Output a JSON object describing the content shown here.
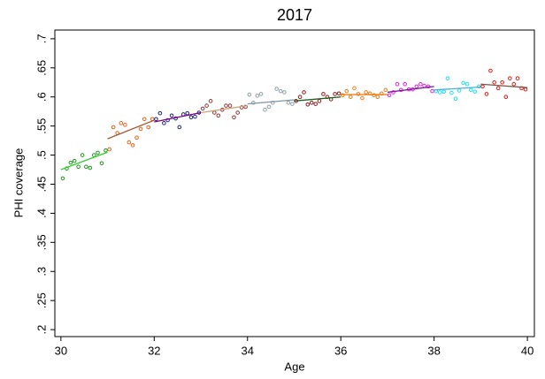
{
  "chart_data": {
    "type": "scatter",
    "title": "2017",
    "x_label": "Age",
    "y_label": "PHI coverage",
    "xlim": [
      29.87,
      40.15
    ],
    "ylim": [
      0.188,
      0.715
    ],
    "xticks": [
      30,
      32,
      34,
      36,
      38,
      40
    ],
    "yticks": [
      {
        "value": 0.2,
        "label": ".2"
      },
      {
        "value": 0.25,
        "label": ".25"
      },
      {
        "value": 0.3,
        "label": ".3"
      },
      {
        "value": 0.35,
        "label": ".35"
      },
      {
        "value": 0.4,
        "label": ".4"
      },
      {
        "value": 0.45,
        "label": ".45"
      },
      {
        "value": 0.5,
        "label": ".5"
      },
      {
        "value": 0.55,
        "label": ".55"
      },
      {
        "value": 0.6,
        "label": ".6"
      },
      {
        "value": 0.65,
        "label": ".65"
      },
      {
        "value": 0.7,
        "label": ".7"
      }
    ],
    "series": [
      {
        "color": "#1a9a1a",
        "x": [
          30.04,
          30.125,
          30.21,
          30.29,
          30.375,
          30.46,
          30.54,
          30.625,
          30.71,
          30.79,
          30.875,
          30.96
        ],
        "values": [
          0.46,
          0.477,
          0.487,
          0.49,
          0.48,
          0.5,
          0.48,
          0.478,
          0.5,
          0.504,
          0.486,
          0.508
        ],
        "fit": {
          "x": [
            30,
            31
          ],
          "values": [
            0.475,
            0.505
          ],
          "color": "#33cc33"
        }
      },
      {
        "color": "#e8601c",
        "x": [
          31.04,
          31.125,
          31.21,
          31.29,
          31.375,
          31.46,
          31.54,
          31.625,
          31.71,
          31.79,
          31.875,
          31.96
        ],
        "values": [
          0.51,
          0.548,
          0.538,
          0.555,
          0.552,
          0.522,
          0.517,
          0.53,
          0.545,
          0.562,
          0.548,
          0.562
        ],
        "fit": {
          "x": [
            31,
            32
          ],
          "values": [
            0.528,
            0.56
          ],
          "color": "#a0522d"
        }
      },
      {
        "color": "#1a237e",
        "x": [
          32.04,
          32.125,
          32.21,
          32.29,
          32.375,
          32.46,
          32.54,
          32.625,
          32.71,
          32.79,
          32.875,
          32.96
        ],
        "values": [
          0.562,
          0.572,
          0.555,
          0.56,
          0.568,
          0.563,
          0.548,
          0.57,
          0.572,
          0.565,
          0.566,
          0.573
        ],
        "fit": {
          "x": [
            32,
            33
          ],
          "values": [
            0.557,
            0.573
          ],
          "color": "#800080"
        }
      },
      {
        "color": "#8b3a3a",
        "x": [
          33.04,
          33.125,
          33.21,
          33.29,
          33.375,
          33.46,
          33.54,
          33.625,
          33.71,
          33.79,
          33.875,
          33.96
        ],
        "values": [
          0.58,
          0.585,
          0.593,
          0.573,
          0.568,
          0.578,
          0.585,
          0.585,
          0.565,
          0.573,
          0.582,
          0.583
        ],
        "fit": {
          "x": [
            33,
            34
          ],
          "values": [
            0.573,
            0.585
          ],
          "color": "#c8a67a"
        }
      },
      {
        "color": "#8e9ea0",
        "x": [
          34.04,
          34.125,
          34.21,
          34.29,
          34.375,
          34.46,
          34.54,
          34.625,
          34.71,
          34.79,
          34.875,
          34.96
        ],
        "values": [
          0.604,
          0.59,
          0.602,
          0.605,
          0.578,
          0.583,
          0.59,
          0.614,
          0.61,
          0.608,
          0.59,
          0.588
        ],
        "fit": {
          "x": [
            34,
            35
          ],
          "values": [
            0.588,
            0.595
          ],
          "color": "#7f93a8"
        }
      },
      {
        "color": "#8b1a1a",
        "x": [
          35.04,
          35.125,
          35.21,
          35.29,
          35.375,
          35.46,
          35.54,
          35.625,
          35.71,
          35.79,
          35.875,
          35.96
        ],
        "values": [
          0.593,
          0.6,
          0.608,
          0.587,
          0.59,
          0.588,
          0.593,
          0.605,
          0.6,
          0.596,
          0.605,
          0.606
        ],
        "fit": {
          "x": [
            35,
            36
          ],
          "values": [
            0.593,
            0.6
          ],
          "color": "#1a5e1a"
        }
      },
      {
        "color": "#e87d1a",
        "x": [
          36.04,
          36.125,
          36.21,
          36.29,
          36.375,
          36.46,
          36.54,
          36.625,
          36.71,
          36.79,
          36.875,
          36.96
        ],
        "values": [
          0.603,
          0.61,
          0.6,
          0.615,
          0.605,
          0.598,
          0.608,
          0.606,
          0.603,
          0.6,
          0.606,
          0.612
        ],
        "fit": {
          "x": [
            36,
            37
          ],
          "values": [
            0.604,
            0.604
          ],
          "color": "#e87d1a"
        }
      },
      {
        "color": "#e020e0",
        "x": [
          37.04,
          37.125,
          37.21,
          37.29,
          37.375,
          37.46,
          37.54,
          37.625,
          37.71,
          37.79,
          37.875,
          37.96
        ],
        "values": [
          0.603,
          0.608,
          0.622,
          0.612,
          0.622,
          0.613,
          0.613,
          0.618,
          0.622,
          0.619,
          0.618,
          0.61
        ],
        "fit": {
          "x": [
            37,
            38
          ],
          "values": [
            0.608,
            0.618
          ],
          "color": "#7a1a9a"
        }
      },
      {
        "color": "#20e0e8",
        "x": [
          38.04,
          38.125,
          38.21,
          38.29,
          38.375,
          38.46,
          38.54,
          38.625,
          38.71,
          38.79,
          38.875,
          38.96
        ],
        "values": [
          0.61,
          0.608,
          0.609,
          0.632,
          0.607,
          0.597,
          0.611,
          0.624,
          0.622,
          0.612,
          0.609,
          0.618
        ],
        "fit": {
          "x": [
            38,
            39
          ],
          "values": [
            0.612,
            0.617
          ],
          "color": "#4ab0d0"
        }
      },
      {
        "color": "#e01a1a",
        "x": [
          39.04,
          39.125,
          39.21,
          39.29,
          39.375,
          39.46,
          39.54,
          39.625,
          39.71,
          39.79,
          39.875,
          39.96
        ],
        "values": [
          0.618,
          0.605,
          0.645,
          0.625,
          0.615,
          0.625,
          0.6,
          0.632,
          0.622,
          0.632,
          0.615,
          0.613
        ],
        "fit": {
          "x": [
            39,
            40
          ],
          "values": [
            0.622,
            0.616
          ],
          "color": "#7a5a4a"
        }
      }
    ]
  }
}
